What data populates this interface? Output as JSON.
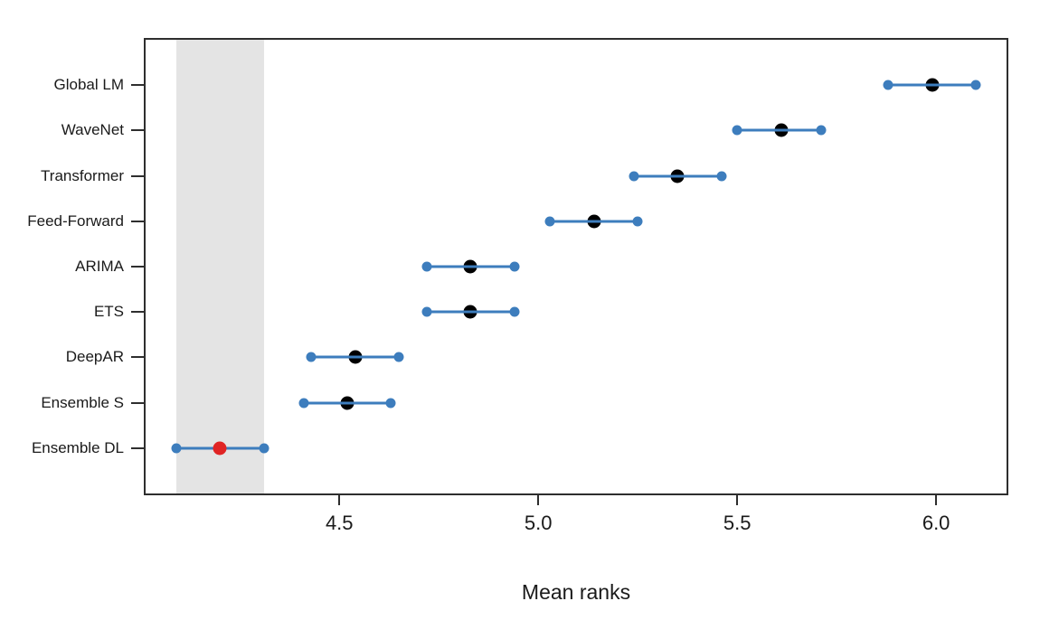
{
  "chart_data": {
    "type": "scatter",
    "subtype": "mean-ranks-interval-plot",
    "title": "",
    "xlabel": "Mean ranks",
    "ylabel": "",
    "xlim": [
      4.013,
      6.177
    ],
    "xticks": [
      4.5,
      5.0,
      5.5,
      6.0
    ],
    "xtick_labels": [
      "4.5",
      "5.0",
      "5.5",
      "6.0"
    ],
    "grid": false,
    "legend": false,
    "categories": [
      "Global LM",
      "WaveNet",
      "Transformer",
      "Feed-Forward",
      "ARIMA",
      "ETS",
      "DeepAR",
      "Ensemble S",
      "Ensemble DL"
    ],
    "series": [
      {
        "name": "Global LM",
        "lower": 5.88,
        "mean": 5.99,
        "upper": 6.1,
        "best": false
      },
      {
        "name": "WaveNet",
        "lower": 5.5,
        "mean": 5.61,
        "upper": 5.71,
        "best": false
      },
      {
        "name": "Transformer",
        "lower": 5.24,
        "mean": 5.35,
        "upper": 5.46,
        "best": false
      },
      {
        "name": "Feed-Forward",
        "lower": 5.03,
        "mean": 5.14,
        "upper": 5.25,
        "best": false
      },
      {
        "name": "ARIMA",
        "lower": 4.72,
        "mean": 4.83,
        "upper": 4.94,
        "best": false
      },
      {
        "name": "ETS",
        "lower": 4.72,
        "mean": 4.83,
        "upper": 4.94,
        "best": false
      },
      {
        "name": "DeepAR",
        "lower": 4.43,
        "mean": 4.54,
        "upper": 4.65,
        "best": false
      },
      {
        "name": "Ensemble S",
        "lower": 4.41,
        "mean": 4.52,
        "upper": 4.63,
        "best": false
      },
      {
        "name": "Ensemble DL",
        "lower": 4.09,
        "mean": 4.2,
        "upper": 4.31,
        "best": true
      }
    ],
    "shaded_region": {
      "xmin": 4.09,
      "xmax": 4.31,
      "color": "#e4e4e4",
      "meaning": "interval of best-ranked method"
    },
    "best_method": "Ensemble DL",
    "colors": {
      "interval_line": "#3d7dbd",
      "endpoint_dot": "#3d7dbd",
      "mean_dot": "#000000",
      "best_mean_dot": "#e02424",
      "axis": "#2e2e2e",
      "shade": "#e4e4e4"
    }
  }
}
